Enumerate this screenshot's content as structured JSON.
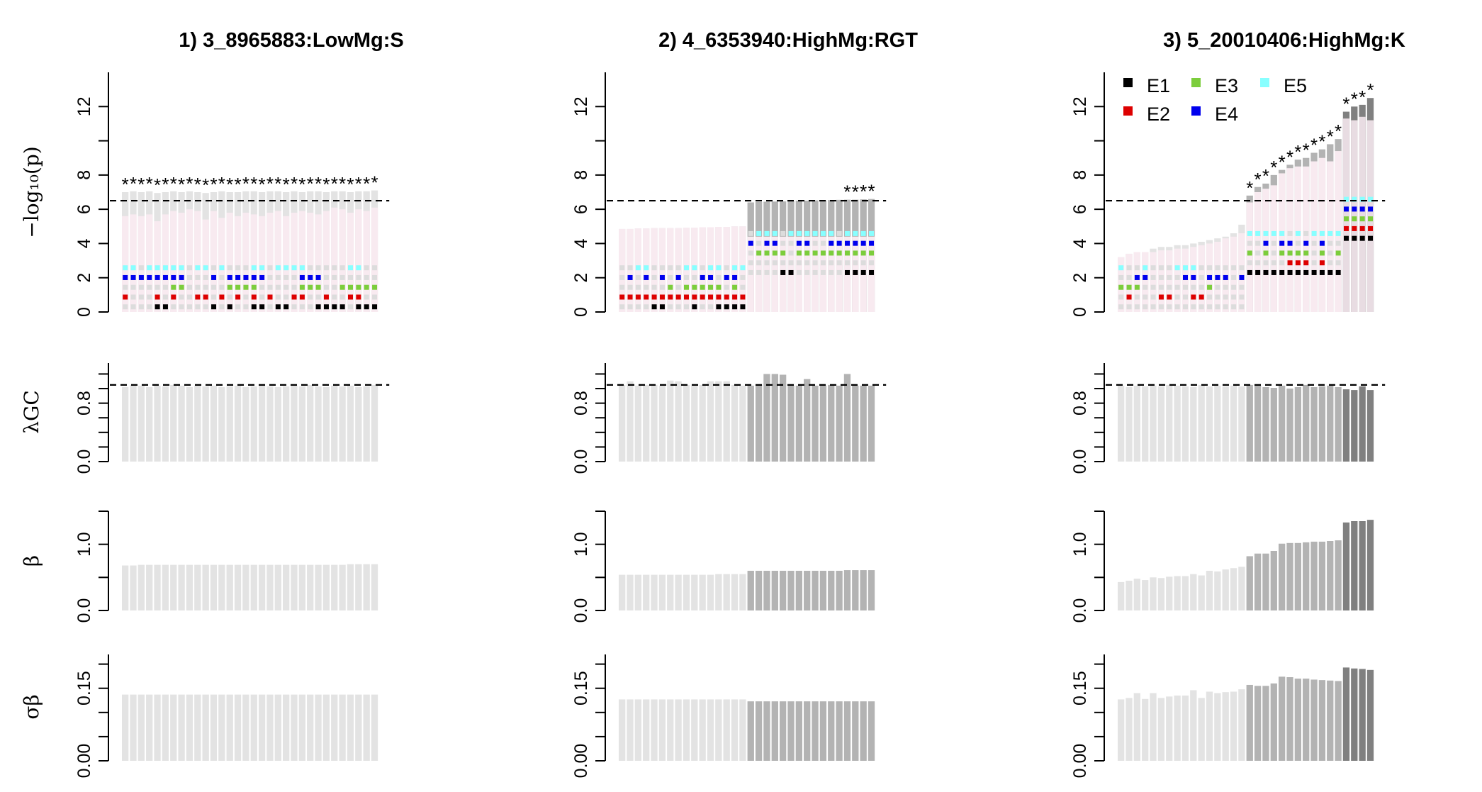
{
  "colors": {
    "E1": "#000000",
    "E2": "#dd0000",
    "E3": "#7ccd3c",
    "E4": "#0000ee",
    "E5": "#88ffff",
    "g1": "#e3e3e3",
    "g2": "#b3b3b3",
    "g3": "#808080",
    "dot_empty": "#dcdcdc",
    "bg_pink": "#f8eaf0"
  },
  "legend": {
    "items": [
      {
        "key": "E1",
        "label": "E1"
      },
      {
        "key": "E3",
        "label": "E3"
      },
      {
        "key": "E5",
        "label": "E5"
      },
      {
        "key": "E2",
        "label": "E2"
      },
      {
        "key": "E4",
        "label": "E4"
      }
    ]
  },
  "row_labels": {
    "p": "−log₁₀(p)",
    "lambda": "λGC",
    "beta": "β",
    "sigma": "σβ"
  },
  "star_symbol": "*",
  "chart_data": [
    {
      "type": "bar",
      "title": "1) 3_8965883:LowMg:S",
      "n": 32,
      "threshold_p": 6.5,
      "threshold_lambda": 1.05,
      "axes": {
        "p": {
          "ylim": [
            0,
            14
          ],
          "ticks": [
            "0",
            "2",
            "4",
            "6",
            "8",
            "12"
          ]
        },
        "lambda": {
          "ylim": [
            0,
            1.35
          ],
          "ticks": [
            "0.0",
            "0.8"
          ]
        },
        "beta": {
          "ylim": [
            0,
            1.5
          ],
          "ticks": [
            "0.0",
            "1.0"
          ]
        },
        "sigma": {
          "ylim": [
            0,
            0.22
          ],
          "ticks": [
            "0.00",
            "0.15"
          ]
        }
      },
      "groups": [
        1,
        1,
        1,
        1,
        1,
        1,
        1,
        1,
        1,
        1,
        1,
        1,
        1,
        1,
        1,
        1,
        1,
        1,
        1,
        1,
        1,
        1,
        1,
        1,
        1,
        1,
        1,
        1,
        1,
        1,
        1,
        1
      ],
      "logp": [
        7.0,
        7.05,
        7.0,
        7.05,
        6.95,
        7.0,
        7.05,
        7.0,
        7.05,
        7.0,
        6.95,
        7.0,
        7.05,
        7.0,
        7.0,
        7.05,
        7.05,
        7.0,
        7.05,
        7.05,
        7.0,
        7.05,
        7.0,
        7.05,
        7.05,
        7.0,
        7.05,
        7.05,
        7.0,
        7.05,
        7.05,
        7.1
      ],
      "logp_main": [
        5.6,
        5.7,
        5.6,
        5.7,
        5.3,
        5.7,
        5.9,
        5.8,
        6.0,
        5.9,
        5.4,
        5.9,
        5.5,
        5.8,
        5.6,
        5.8,
        5.7,
        5.6,
        5.8,
        5.9,
        5.6,
        5.8,
        5.9,
        5.8,
        5.7,
        5.9,
        6.1,
        6.0,
        5.8,
        6.0,
        5.9,
        6.1
      ],
      "signif": [
        1,
        1,
        1,
        1,
        1,
        1,
        1,
        1,
        1,
        1,
        1,
        1,
        1,
        1,
        1,
        1,
        1,
        1,
        1,
        1,
        1,
        1,
        1,
        1,
        1,
        1,
        1,
        1,
        1,
        1,
        1,
        1
      ],
      "env": {
        "E1": [
          0,
          0,
          0,
          0,
          1,
          1,
          0,
          0,
          0,
          0,
          0,
          1,
          0,
          1,
          0,
          0,
          1,
          1,
          0,
          1,
          1,
          0,
          0,
          0,
          1,
          1,
          1,
          1,
          0,
          1,
          1,
          1
        ],
        "E2": [
          1,
          0,
          0,
          0,
          1,
          0,
          1,
          0,
          0,
          1,
          1,
          0,
          1,
          0,
          1,
          0,
          1,
          0,
          1,
          0,
          0,
          1,
          1,
          0,
          0,
          1,
          0,
          0,
          1,
          1,
          0,
          0
        ],
        "E3": [
          0,
          0,
          0,
          0,
          0,
          0,
          1,
          1,
          0,
          0,
          0,
          0,
          0,
          1,
          1,
          1,
          1,
          0,
          0,
          0,
          0,
          0,
          1,
          1,
          1,
          0,
          0,
          1,
          1,
          1,
          1,
          1
        ],
        "E4": [
          1,
          1,
          1,
          1,
          1,
          1,
          1,
          1,
          0,
          0,
          0,
          1,
          0,
          1,
          1,
          1,
          1,
          1,
          0,
          0,
          0,
          0,
          1,
          1,
          1,
          0,
          0,
          0,
          0,
          0,
          0,
          0
        ],
        "E5": [
          1,
          1,
          0,
          1,
          1,
          1,
          1,
          1,
          0,
          1,
          1,
          0,
          1,
          0,
          0,
          0,
          1,
          1,
          0,
          1,
          1,
          1,
          1,
          0,
          0,
          0,
          0,
          0,
          1,
          1,
          0,
          0
        ]
      },
      "lambda": [
        1.02,
        1.05,
        1.04,
        1.02,
        1.04,
        1.03,
        1.05,
        1.04,
        1.02,
        1.04,
        1.03,
        1.04,
        1.02,
        1.03,
        1.04,
        1.02,
        1.03,
        1.04,
        1.03,
        1.02,
        1.03,
        1.04,
        1.03,
        1.05,
        1.03,
        1.02,
        1.04,
        1.03,
        1.04,
        1.02,
        1.03,
        1.05
      ],
      "beta": [
        0.68,
        0.68,
        0.69,
        0.69,
        0.69,
        0.69,
        0.69,
        0.69,
        0.69,
        0.69,
        0.69,
        0.69,
        0.69,
        0.69,
        0.69,
        0.69,
        0.69,
        0.69,
        0.69,
        0.69,
        0.69,
        0.69,
        0.69,
        0.69,
        0.69,
        0.69,
        0.69,
        0.69,
        0.7,
        0.7,
        0.7,
        0.7
      ],
      "sigma": [
        0.137,
        0.137,
        0.137,
        0.137,
        0.137,
        0.137,
        0.137,
        0.137,
        0.137,
        0.137,
        0.137,
        0.137,
        0.137,
        0.137,
        0.137,
        0.137,
        0.137,
        0.137,
        0.137,
        0.137,
        0.137,
        0.137,
        0.137,
        0.137,
        0.137,
        0.137,
        0.137,
        0.137,
        0.137,
        0.137,
        0.137,
        0.137
      ]
    },
    {
      "type": "bar",
      "title": "2) 4_6353940:HighMg:RGT",
      "n": 32,
      "threshold_p": 6.5,
      "threshold_lambda": 1.05,
      "axes": {
        "p": {
          "ylim": [
            0,
            14
          ],
          "ticks": [
            "0",
            "2",
            "4",
            "6",
            "8",
            "12"
          ]
        },
        "lambda": {
          "ylim": [
            0,
            1.35
          ],
          "ticks": [
            "0.0",
            "0.8"
          ]
        },
        "beta": {
          "ylim": [
            0,
            1.5
          ],
          "ticks": [
            "0.0",
            "1.0"
          ]
        },
        "sigma": {
          "ylim": [
            0,
            0.22
          ],
          "ticks": [
            "0.00",
            "0.15"
          ]
        }
      },
      "groups": [
        1,
        1,
        1,
        1,
        1,
        1,
        1,
        1,
        1,
        1,
        1,
        1,
        1,
        1,
        1,
        1,
        2,
        2,
        2,
        2,
        2,
        2,
        2,
        2,
        2,
        2,
        2,
        2,
        2,
        2,
        2,
        2
      ],
      "logp": [
        4.85,
        4.85,
        4.88,
        4.88,
        4.9,
        4.9,
        4.9,
        4.9,
        4.92,
        4.92,
        4.95,
        4.95,
        4.97,
        4.97,
        5.0,
        5.0,
        6.4,
        6.42,
        6.44,
        6.45,
        6.46,
        6.48,
        6.5,
        6.5,
        6.52,
        6.52,
        6.54,
        6.55,
        6.56,
        6.56,
        6.58,
        6.6
      ],
      "logp_main": [
        4.85,
        4.85,
        4.88,
        4.88,
        4.9,
        4.9,
        4.9,
        4.9,
        4.92,
        4.92,
        4.95,
        4.95,
        4.97,
        4.97,
        5.0,
        5.0,
        4.4,
        4.4,
        4.4,
        4.4,
        4.4,
        4.4,
        4.4,
        4.4,
        4.4,
        4.4,
        4.4,
        4.4,
        4.4,
        4.4,
        4.4,
        4.4
      ],
      "signif": [
        0,
        0,
        0,
        0,
        0,
        0,
        0,
        0,
        0,
        0,
        0,
        0,
        0,
        0,
        0,
        0,
        0,
        0,
        0,
        0,
        0,
        0,
        0,
        0,
        0,
        0,
        0,
        0,
        1,
        1,
        1,
        1
      ],
      "env": {
        "E1": [
          0,
          0,
          0,
          0,
          1,
          1,
          0,
          0,
          0,
          1,
          0,
          0,
          1,
          1,
          1,
          1,
          0,
          0,
          0,
          0,
          1,
          1,
          0,
          0,
          0,
          0,
          0,
          0,
          1,
          1,
          1,
          1
        ],
        "E2": [
          1,
          1,
          1,
          1,
          1,
          1,
          1,
          1,
          1,
          1,
          1,
          1,
          1,
          1,
          1,
          1,
          0,
          0,
          0,
          0,
          0,
          0,
          0,
          0,
          0,
          0,
          0,
          0,
          0,
          0,
          0,
          0
        ],
        "E3": [
          0,
          0,
          0,
          0,
          0,
          0,
          1,
          0,
          1,
          1,
          1,
          1,
          1,
          0,
          1,
          0,
          0,
          1,
          1,
          1,
          1,
          0,
          1,
          1,
          1,
          1,
          1,
          1,
          1,
          1,
          1,
          1
        ],
        "E4": [
          0,
          1,
          0,
          1,
          0,
          1,
          0,
          1,
          0,
          0,
          1,
          1,
          0,
          1,
          1,
          0,
          1,
          0,
          1,
          1,
          0,
          0,
          1,
          1,
          0,
          0,
          1,
          1,
          1,
          1,
          1,
          1
        ],
        "E5": [
          0,
          0,
          1,
          1,
          0,
          0,
          0,
          0,
          1,
          1,
          0,
          1,
          1,
          0,
          1,
          1,
          0,
          1,
          1,
          1,
          0,
          1,
          1,
          1,
          1,
          1,
          1,
          0,
          1,
          1,
          1,
          1
        ]
      },
      "lambda": [
        1.05,
        1.1,
        1.04,
        1.05,
        1.05,
        1.04,
        1.11,
        1.1,
        1.05,
        1.04,
        1.05,
        1.1,
        1.1,
        1.1,
        1.05,
        1.04,
        1.04,
        1.05,
        1.2,
        1.2,
        1.19,
        1.04,
        1.04,
        1.13,
        1.04,
        1.04,
        1.05,
        1.04,
        1.2,
        1.04,
        1.04,
        1.04
      ],
      "beta": [
        0.54,
        0.54,
        0.54,
        0.54,
        0.54,
        0.54,
        0.54,
        0.54,
        0.54,
        0.54,
        0.54,
        0.54,
        0.55,
        0.55,
        0.55,
        0.55,
        0.6,
        0.6,
        0.6,
        0.6,
        0.6,
        0.6,
        0.6,
        0.6,
        0.6,
        0.6,
        0.6,
        0.6,
        0.61,
        0.61,
        0.61,
        0.61
      ],
      "sigma": [
        0.127,
        0.127,
        0.127,
        0.127,
        0.127,
        0.127,
        0.127,
        0.127,
        0.127,
        0.127,
        0.127,
        0.127,
        0.127,
        0.127,
        0.127,
        0.127,
        0.123,
        0.123,
        0.123,
        0.123,
        0.123,
        0.123,
        0.123,
        0.123,
        0.123,
        0.123,
        0.123,
        0.123,
        0.123,
        0.123,
        0.123,
        0.123
      ]
    },
    {
      "type": "bar",
      "title": "3) 5_20010406:HighMg:K",
      "n": 32,
      "threshold_p": 6.5,
      "threshold_lambda": 1.05,
      "axes": {
        "p": {
          "ylim": [
            0,
            14
          ],
          "ticks": [
            "0",
            "2",
            "4",
            "6",
            "8",
            "12"
          ]
        },
        "lambda": {
          "ylim": [
            0,
            1.35
          ],
          "ticks": [
            "0.0",
            "0.8"
          ]
        },
        "beta": {
          "ylim": [
            0,
            1.5
          ],
          "ticks": [
            "0.0",
            "1.0"
          ]
        },
        "sigma": {
          "ylim": [
            0,
            0.22
          ],
          "ticks": [
            "0.00",
            "0.15"
          ]
        }
      },
      "groups": [
        1,
        1,
        1,
        1,
        1,
        1,
        1,
        1,
        1,
        1,
        1,
        1,
        1,
        1,
        1,
        1,
        2,
        2,
        2,
        2,
        2,
        2,
        2,
        2,
        2,
        2,
        2,
        2,
        3,
        3,
        3,
        3
      ],
      "logp": [
        3.2,
        3.4,
        3.5,
        3.5,
        3.7,
        3.8,
        3.8,
        3.9,
        3.9,
        4.0,
        4.1,
        4.2,
        4.3,
        4.4,
        4.6,
        5.1,
        6.8,
        7.3,
        7.5,
        8.0,
        8.3,
        8.6,
        8.9,
        9.0,
        9.3,
        9.5,
        9.8,
        10.1,
        11.7,
        12.0,
        12.1,
        12.5
      ],
      "logp_main": [
        3.2,
        3.4,
        3.5,
        3.5,
        3.5,
        3.6,
        3.6,
        3.7,
        3.7,
        3.8,
        3.9,
        4.0,
        4.1,
        4.3,
        4.4,
        4.6,
        6.4,
        7.0,
        7.2,
        7.4,
        8.1,
        8.4,
        8.5,
        8.5,
        8.8,
        9.0,
        8.8,
        9.4,
        11.3,
        11.2,
        11.4,
        11.2
      ],
      "signif": [
        0,
        0,
        0,
        0,
        0,
        0,
        0,
        0,
        0,
        0,
        0,
        0,
        0,
        0,
        0,
        0,
        1,
        1,
        1,
        1,
        1,
        1,
        1,
        1,
        1,
        1,
        1,
        1,
        1,
        1,
        1,
        1
      ],
      "env": {
        "E1": [
          0,
          0,
          0,
          0,
          0,
          0,
          0,
          0,
          0,
          0,
          0,
          0,
          0,
          0,
          0,
          0,
          1,
          1,
          1,
          1,
          1,
          1,
          1,
          1,
          1,
          1,
          1,
          1,
          1,
          1,
          1,
          1
        ],
        "E2": [
          0,
          1,
          0,
          0,
          0,
          1,
          1,
          0,
          0,
          1,
          1,
          0,
          0,
          0,
          0,
          0,
          0,
          0,
          0,
          0,
          0,
          1,
          1,
          1,
          0,
          1,
          0,
          0,
          1,
          1,
          1,
          1
        ],
        "E3": [
          1,
          1,
          1,
          0,
          0,
          0,
          0,
          0,
          0,
          0,
          0,
          1,
          0,
          0,
          0,
          0,
          1,
          0,
          1,
          0,
          1,
          1,
          1,
          1,
          0,
          1,
          0,
          1,
          1,
          1,
          1,
          1
        ],
        "E4": [
          0,
          0,
          1,
          1,
          0,
          0,
          0,
          0,
          1,
          1,
          0,
          1,
          1,
          1,
          0,
          1,
          0,
          0,
          1,
          0,
          1,
          1,
          0,
          1,
          0,
          1,
          0,
          0,
          1,
          1,
          1,
          1
        ],
        "E5": [
          1,
          0,
          0,
          1,
          0,
          0,
          0,
          1,
          1,
          1,
          0,
          0,
          0,
          0,
          0,
          0,
          1,
          1,
          1,
          1,
          1,
          0,
          1,
          0,
          1,
          1,
          1,
          1,
          1,
          1,
          1,
          1
        ]
      },
      "lambda": [
        1.04,
        1.02,
        1.04,
        1.03,
        1.04,
        1.03,
        1.05,
        1.04,
        1.03,
        1.02,
        1.05,
        1.03,
        1.04,
        1.03,
        1.04,
        1.03,
        1.05,
        1.04,
        1.02,
        1.01,
        1.04,
        1.0,
        1.02,
        1.05,
        1.02,
        1.03,
        1.04,
        1.02,
        0.99,
        0.98,
        1.03,
        0.98
      ],
      "beta": [
        0.43,
        0.45,
        0.48,
        0.46,
        0.5,
        0.49,
        0.51,
        0.52,
        0.52,
        0.55,
        0.53,
        0.6,
        0.59,
        0.62,
        0.64,
        0.66,
        0.82,
        0.86,
        0.86,
        0.9,
        1.01,
        1.02,
        1.02,
        1.03,
        1.04,
        1.04,
        1.05,
        1.06,
        1.33,
        1.35,
        1.35,
        1.37
      ],
      "sigma": [
        0.127,
        0.13,
        0.14,
        0.128,
        0.14,
        0.13,
        0.133,
        0.135,
        0.135,
        0.146,
        0.13,
        0.143,
        0.14,
        0.142,
        0.143,
        0.148,
        0.157,
        0.155,
        0.155,
        0.16,
        0.174,
        0.173,
        0.17,
        0.17,
        0.168,
        0.167,
        0.166,
        0.165,
        0.193,
        0.191,
        0.19,
        0.188
      ]
    }
  ]
}
